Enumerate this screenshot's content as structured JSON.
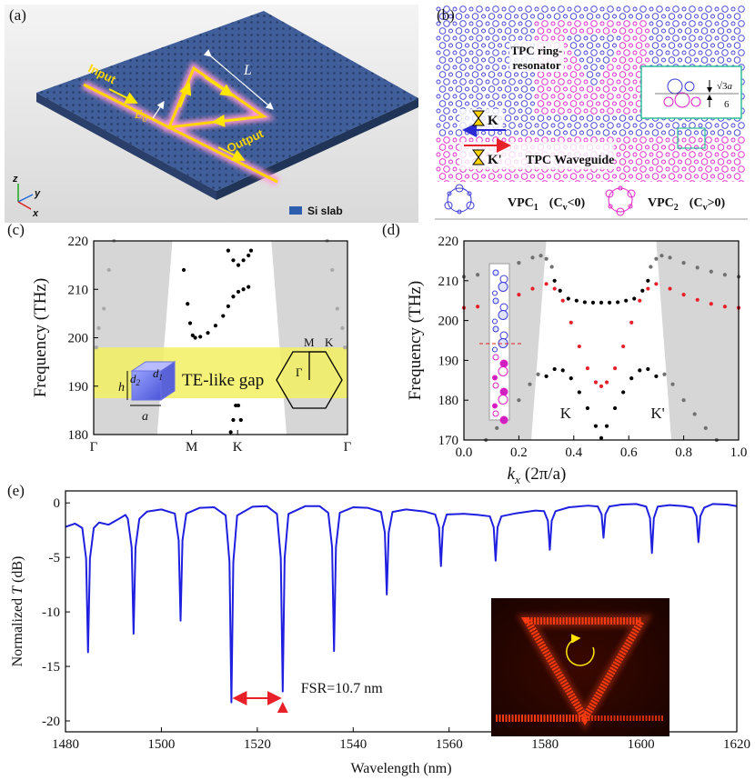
{
  "panels": {
    "a": {
      "label": "(a)",
      "input": "Input",
      "output": "Output",
      "length": "L",
      "field": "E",
      "field_sub": "0",
      "axes": [
        "z",
        "y",
        "x"
      ],
      "legend": "Si slab"
    },
    "b": {
      "label": "(b)",
      "ring": [
        "TPC ring-",
        "resonator"
      ],
      "valley_k": "K",
      "valley_k_prime": "K'",
      "waveguide": "TPC Waveguide",
      "lattice_const": [
        "√3",
        "a"
      ],
      "denominator": "6",
      "vpc1": {
        "name": "VPC",
        "sub": "1",
        "cond": "(C",
        "cond_sub": "v",
        "cond_end": "<0)"
      },
      "vpc2": {
        "name": "VPC",
        "sub": "2",
        "cond": "(C",
        "cond_sub": "v",
        "cond_end": ">0)"
      }
    }
  },
  "chart_data": [
    {
      "label": "(c)",
      "type": "scatter",
      "y_label": "Frequency (THz)",
      "xlim": [
        0,
        1
      ],
      "xticks": [
        {
          "value": 0,
          "label": "Γ"
        },
        {
          "value": 0.386,
          "label": "M"
        },
        {
          "value": 0.567,
          "label": "K"
        },
        {
          "value": 1,
          "label": "Γ"
        }
      ],
      "ylim": [
        180,
        220
      ],
      "yticks": [
        180,
        190,
        200,
        210,
        220
      ],
      "light_cone": [
        [
          0.31,
          0.25
        ],
        [
          0.7,
          0.76
        ]
      ],
      "gap": [
        187.5,
        198
      ],
      "gap_label": "TE-like gap",
      "inset": {
        "d2": [
          "d",
          "2"
        ],
        "d1": [
          "d",
          "1"
        ],
        "h": "h",
        "a": "a",
        "M": "M",
        "K": "K",
        "Gamma": "Γ"
      },
      "series": [
        {
          "color": "#a8a8a8",
          "x": [
            0.01,
            0.02,
            0.04,
            0.06,
            0.08,
            0.92,
            0.94,
            0.96,
            0.98,
            0.99
          ],
          "values": [
            198,
            202,
            206,
            214,
            220,
            220,
            214,
            206,
            202,
            198
          ]
        },
        {
          "color": "#000000",
          "x": [
            0.355,
            0.37,
            0.38,
            0.39,
            0.4,
            0.42,
            0.45,
            0.48,
            0.51,
            0.53,
            0.55,
            0.57,
            0.59,
            0.61,
            0.53,
            0.55,
            0.57,
            0.59,
            0.61,
            0.62,
            0.54,
            0.55,
            0.56,
            0.57,
            0.58
          ],
          "values": [
            214,
            207,
            203,
            200.5,
            200,
            200.2,
            201,
            202.5,
            204.5,
            206.5,
            208.5,
            209.5,
            210,
            210.5,
            218,
            216,
            215,
            216,
            217,
            218,
            180.5,
            183,
            186,
            186,
            183
          ]
        }
      ]
    },
    {
      "label": "(d)",
      "type": "scatter",
      "y_label": "Frequency (THz)",
      "x_label": [
        "k",
        "x",
        "(2π/a)"
      ],
      "xlim": [
        0,
        1
      ],
      "xticks": [
        {
          "value": 0,
          "label": "0.0"
        },
        {
          "value": 0.2,
          "label": "0.2"
        },
        {
          "value": 0.4,
          "label": "0.4"
        },
        {
          "value": 0.6,
          "label": "0.6"
        },
        {
          "value": 0.8,
          "label": "0.8"
        },
        {
          "value": 1,
          "label": "1.0"
        }
      ],
      "ylim": [
        170,
        220
      ],
      "yticks": [
        170,
        180,
        190,
        200,
        210,
        220
      ],
      "light_cone": [
        [
          0.3,
          0.245
        ],
        [
          0.7,
          0.755
        ]
      ],
      "valley_labels": [
        "K",
        "K'"
      ],
      "series": [
        {
          "color": "#707070",
          "x": [
            0,
            0.05,
            0.1,
            0.15,
            0.2,
            0.25,
            0.28,
            0.3,
            0.32,
            0.68,
            0.7,
            0.72,
            0.75,
            0.8,
            0.85,
            0.9,
            0.95,
            1.0,
            0.08,
            0.12,
            0.16,
            0.2,
            0.24,
            0.27,
            0.73,
            0.76,
            0.8,
            0.84,
            0.88,
            0.92
          ],
          "values": [
            211,
            211.5,
            212.3,
            213.3,
            214.5,
            215.8,
            216.3,
            215.5,
            213.5,
            213.5,
            215.5,
            216.3,
            215.8,
            214.5,
            213.3,
            212.3,
            211.5,
            211,
            170,
            173,
            176.5,
            180,
            184,
            186.5,
            186.5,
            184,
            180,
            176.5,
            173,
            170
          ]
        },
        {
          "color": "#e8202a",
          "x": [
            0,
            0.05,
            0.1,
            0.15,
            0.2,
            0.25,
            0.3,
            0.33,
            0.36,
            0.39,
            0.42,
            0.45,
            0.48,
            0.5,
            0.52,
            0.55,
            0.58,
            0.61,
            0.64,
            0.67,
            0.7,
            0.75,
            0.8,
            0.85,
            0.9,
            0.95,
            1.0
          ],
          "values": [
            203.2,
            203.5,
            204.2,
            205.2,
            206.5,
            208,
            209.2,
            208,
            205,
            199.5,
            193.5,
            188,
            184.5,
            183.5,
            184.5,
            188,
            193.5,
            199.5,
            205,
            208,
            209.2,
            208,
            206.5,
            205.2,
            204.2,
            203.5,
            203.2
          ]
        },
        {
          "color": "#000000",
          "x": [
            0.33,
            0.35,
            0.38,
            0.41,
            0.44,
            0.47,
            0.5,
            0.53,
            0.56,
            0.59,
            0.62,
            0.65,
            0.67,
            0.3,
            0.33,
            0.36,
            0.39,
            0.42,
            0.45,
            0.48,
            0.5,
            0.52,
            0.55,
            0.58,
            0.61,
            0.64,
            0.67,
            0.7
          ],
          "values": [
            210,
            207.5,
            205.5,
            205,
            204.6,
            204.5,
            204.5,
            204.5,
            204.6,
            205,
            205.5,
            207.5,
            210,
            186,
            187.8,
            187.5,
            185.5,
            182,
            178,
            173.5,
            170.5,
            173.5,
            178,
            182,
            185.5,
            187.5,
            187.8,
            186
          ]
        }
      ]
    },
    {
      "label": "(e)",
      "type": "line",
      "y_label": [
        "Normalized",
        "T",
        "(dB)"
      ],
      "x_label": "Wavelength (nm)",
      "xlim": [
        1480,
        1620
      ],
      "xticks": [
        1480,
        1500,
        1520,
        1540,
        1560,
        1580,
        1600,
        1620
      ],
      "ylim": [
        -21,
        1.1
      ],
      "yticks": [
        0,
        -5,
        -10,
        -15,
        -20
      ],
      "annotation": "FSR=10.7 nm",
      "fsr_between": [
        1514.6,
        1525.3
      ],
      "series": [
        {
          "color": "#1f1fe0",
          "x": [
            1480,
            1482,
            1483.5,
            1484.3,
            1484.7,
            1485.1,
            1485.9,
            1487,
            1489,
            1491,
            1492.5,
            1493.0,
            1493.8,
            1494.2,
            1494.6,
            1495.4,
            1497,
            1500,
            1502.8,
            1503.6,
            1504.0,
            1504.4,
            1505.2,
            1508,
            1511,
            1513.4,
            1514.2,
            1514.6,
            1515.0,
            1515.8,
            1519,
            1522,
            1524.1,
            1524.9,
            1525.3,
            1525.7,
            1526.5,
            1530,
            1533,
            1534.8,
            1535.6,
            1536.0,
            1536.4,
            1537.2,
            1540,
            1543,
            1545.8,
            1546.6,
            1547.0,
            1547.4,
            1548.2,
            1551,
            1555,
            1557.1,
            1557.9,
            1558.3,
            1558.7,
            1559.5,
            1563,
            1566,
            1568.5,
            1569.3,
            1569.7,
            1570.1,
            1570.9,
            1574,
            1578,
            1579.8,
            1580.6,
            1581.0,
            1581.4,
            1582.2,
            1585,
            1589,
            1591.0,
            1591.8,
            1592.2,
            1592.6,
            1593.4,
            1596,
            1599,
            1601.1,
            1601.9,
            1602.3,
            1602.7,
            1603.5,
            1606,
            1609,
            1610.8,
            1611.6,
            1612.0,
            1612.4,
            1613.2,
            1615,
            1618,
            1620
          ],
          "values": [
            -2.2,
            -1.9,
            -2.3,
            -5.1,
            -13.7,
            -5.1,
            -2.3,
            -1.8,
            -2.0,
            -1.5,
            -1.1,
            -1.46,
            -4.08,
            -12.0,
            -4.08,
            -1.46,
            -0.8,
            -0.6,
            -0.98,
            -3.42,
            -10.8,
            -3.42,
            -0.98,
            -0.45,
            -0.4,
            -1.15,
            -5.41,
            -18.3,
            -5.41,
            -1.15,
            -0.35,
            -0.3,
            -1.01,
            -5.06,
            -17.3,
            -5.06,
            -1.01,
            -0.3,
            -0.3,
            -0.91,
            -4.06,
            -13.6,
            -4.06,
            -0.91,
            -0.4,
            -0.45,
            -0.83,
            -2.71,
            -8.4,
            -2.71,
            -0.83,
            -0.6,
            -0.8,
            -1.06,
            -2.24,
            -5.8,
            -2.24,
            -1.06,
            -1.0,
            -1.1,
            -1.23,
            -2.24,
            -5.3,
            -2.24,
            -1.23,
            -0.95,
            -0.7,
            -0.76,
            -1.64,
            -4.3,
            -1.64,
            -0.76,
            -0.4,
            -0.25,
            -0.33,
            -1.04,
            -3.2,
            -1.04,
            -0.33,
            -0.15,
            -0.1,
            -0.34,
            -1.4,
            -4.6,
            -1.4,
            -0.34,
            -0.2,
            -0.3,
            -0.44,
            -1.22,
            -3.6,
            -1.22,
            -0.44,
            -0.1,
            -0.15,
            -0.3
          ]
        }
      ]
    }
  ]
}
